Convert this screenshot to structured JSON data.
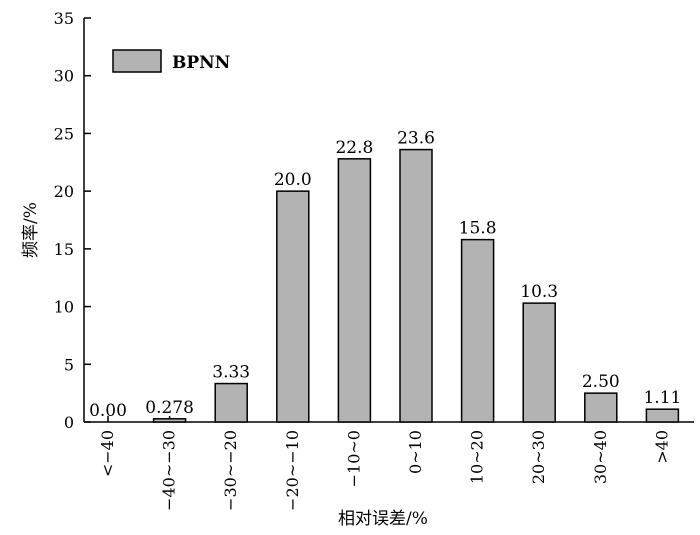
{
  "chart_data": {
    "type": "bar",
    "title": "",
    "xlabel": "相对误差/%",
    "ylabel": "频率/%",
    "ylim": [
      0,
      35
    ],
    "yticks": [
      0,
      5,
      10,
      15,
      20,
      25,
      30,
      35
    ],
    "categories": [
      "<−40",
      "−40~−30",
      "−30~−20",
      "−20~−10",
      "−10~0",
      "0~10",
      "10~20",
      "20~30",
      "30~40",
      ">40"
    ],
    "series": [
      {
        "name": "BPNN",
        "values": [
          0.0,
          0.278,
          3.33,
          20.0,
          22.8,
          23.6,
          15.8,
          10.3,
          2.5,
          1.11
        ],
        "labels": [
          "0.00",
          "0.278",
          "3.33",
          "20.0",
          "22.8",
          "23.6",
          "15.8",
          "10.3",
          "2.50",
          "1.11"
        ]
      }
    ],
    "colors": {
      "bar_fill": "#b3b3b3",
      "bar_stroke": "#000000",
      "axis": "#000000"
    },
    "grid": false,
    "legend": "top-left"
  }
}
